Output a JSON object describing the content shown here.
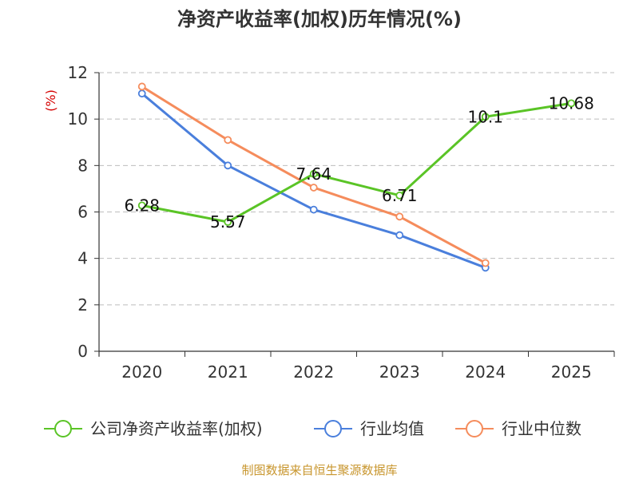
{
  "chart_data": {
    "type": "line",
    "title": "净资产收益率(加权)历年情况(%)",
    "ylabel": "(%)",
    "xlabel": "",
    "categories": [
      "2020",
      "2021",
      "2022",
      "2023",
      "2024",
      "2025"
    ],
    "ylim": [
      0,
      12
    ],
    "yticks": [
      0,
      2,
      4,
      6,
      8,
      10,
      12
    ],
    "grid": true,
    "legend_position": "bottom",
    "series": [
      {
        "name": "公司净资产收益率(加权)",
        "color": "#5ac426",
        "values": [
          6.28,
          5.57,
          7.64,
          6.71,
          10.1,
          10.68
        ],
        "labels": [
          "6.28",
          "5.57",
          "7.64",
          "6.71",
          "10.1",
          "10.68"
        ]
      },
      {
        "name": "行业均值",
        "color": "#4a7fdc",
        "values": [
          11.1,
          8.0,
          6.1,
          5.0,
          3.6,
          null
        ]
      },
      {
        "name": "行业中位数",
        "color": "#f58c5c",
        "values": [
          11.4,
          9.1,
          7.05,
          5.8,
          3.8,
          null
        ]
      }
    ],
    "source": "制图数据来自恒生聚源数据库",
    "source_color": "#c8962e"
  }
}
